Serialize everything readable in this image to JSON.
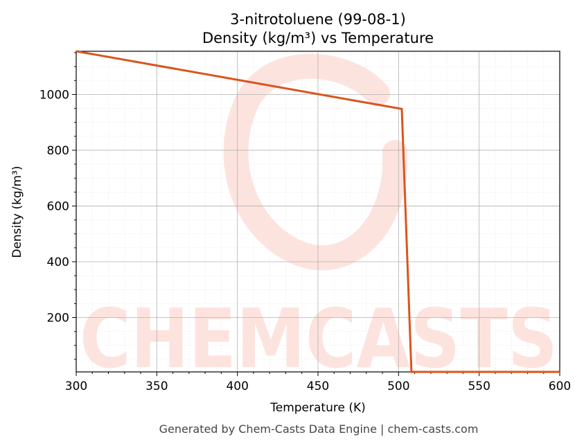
{
  "chart_data": {
    "type": "line",
    "title": "3-nitrotoluene (99-08-1)",
    "subtitle": "Density (kg/m³) vs Temperature",
    "xlabel": "Temperature (K)",
    "ylabel": "Density (kg/m³)",
    "xlim": [
      300,
      600
    ],
    "ylim": [
      5,
      1155
    ],
    "x_ticks": [
      300,
      350,
      400,
      450,
      500,
      550,
      600
    ],
    "y_ticks": [
      200,
      400,
      600,
      800,
      1000
    ],
    "grid": true,
    "series": [
      {
        "color": "#d9541e",
        "x": [
          300,
          502,
          508,
          600
        ],
        "y": [
          1155,
          948,
          5,
          5
        ]
      }
    ]
  },
  "watermark": {
    "text": "CHEMCASTS",
    "color": "#fde3de"
  },
  "footer": "Generated by Chem-Casts Data Engine | chem-casts.com"
}
